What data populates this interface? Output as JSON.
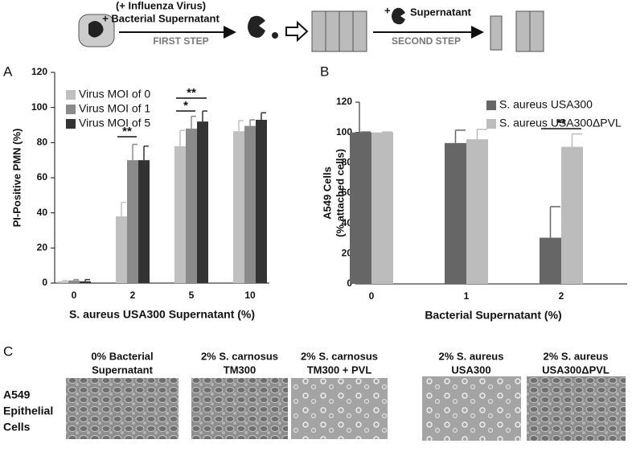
{
  "schematic": {
    "lines1": [
      "(+ Influenza Virus)",
      "+ Bacterial Supernatant"
    ],
    "step1": "FIRST STEP",
    "plus": "+",
    "supernatant": "Supernatant",
    "step2": "SECOND STEP"
  },
  "panel_labels": [
    "A",
    "B",
    "C"
  ],
  "chart_data": [
    {
      "type": "bar",
      "ylabel": "PI-Positive PMN (%)",
      "xlabel": "S. aureus USA300 Supernatant (%)",
      "categories": [
        "0",
        "2",
        "5",
        "10"
      ],
      "series": [
        {
          "name": "Virus MOI of 0",
          "color": "#c0c0c0",
          "values": [
            1,
            38,
            78,
            86.5
          ],
          "errors": [
            0.5,
            8,
            9,
            6
          ]
        },
        {
          "name": "Virus MOI of 1",
          "color": "#8a8a8a",
          "values": [
            1.5,
            70,
            88,
            89.5
          ],
          "errors": [
            0.5,
            9,
            7,
            3.5
          ]
        },
        {
          "name": "Virus MOI of 5",
          "color": "#333333",
          "values": [
            1,
            70,
            92,
            93
          ],
          "errors": [
            1,
            8,
            6,
            4
          ]
        }
      ],
      "ylim": [
        0,
        120
      ],
      "yticks": [
        0,
        20,
        40,
        60,
        80,
        100,
        120
      ],
      "annotations": [
        "**",
        "*",
        "**"
      ]
    },
    {
      "type": "bar",
      "ylabel": [
        "A549 Cells",
        "(% attached cells)"
      ],
      "xlabel": "Bacterial Supernatant (%)",
      "categories": [
        "0",
        "1",
        "2"
      ],
      "series": [
        {
          "name": "S. aureus USA300",
          "color": "#666666",
          "values": [
            100,
            93,
            30.5
          ],
          "errors": [
            0.3,
            8.5,
            20.5
          ]
        },
        {
          "name": "S. aureus USA300ΔPVL",
          "color": "#bcbcbc",
          "values": [
            100,
            95.5,
            90.5
          ],
          "errors": [
            0.3,
            6.5,
            8.5
          ]
        }
      ],
      "ylim": [
        0,
        120
      ],
      "yticks": [
        0,
        20,
        40,
        60,
        80,
        100,
        120
      ],
      "annotations": [
        "**"
      ]
    }
  ],
  "panel_c": {
    "row_label": [
      "A549",
      "Epithelial",
      "Cells"
    ],
    "captions": [
      [
        "0% Bacterial",
        "Supernatant"
      ],
      [
        "2% S. carnosus",
        "TM300"
      ],
      [
        "2% S. carnosus",
        "TM300 + PVL"
      ],
      [
        "2% S. aureus",
        "USA300"
      ],
      [
        "2% S. aureus",
        "USA300ΔPVL"
      ]
    ]
  }
}
